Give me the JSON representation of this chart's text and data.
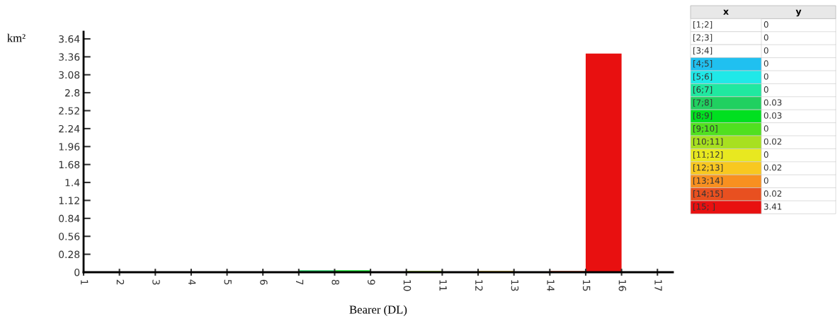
{
  "chart_data": [
    {
      "type": "histogram",
      "xlabel": "Bearer (DL)",
      "ylabel": "km²",
      "bins": [
        1,
        2,
        3,
        4,
        5,
        6,
        7,
        8,
        9,
        10,
        11,
        12,
        13,
        14,
        15,
        16
      ],
      "values": [
        0,
        0,
        0,
        0,
        0,
        0,
        0.03,
        0.03,
        0,
        0.02,
        0,
        0.02,
        0,
        0.02,
        3.41
      ],
      "colors": [
        "#ffffff",
        "#ffffff",
        "#ffffff",
        "#20c0f0",
        "#20e8e8",
        "#20e8a0",
        "#20d060",
        "#00e020",
        "#50e020",
        "#a8e020",
        "#e8e820",
        "#f8c820",
        "#f89020",
        "#e85020",
        "#e81010"
      ],
      "xlim": [
        1,
        17.43
      ],
      "xticks": [
        1,
        2,
        3,
        4,
        5,
        6,
        7,
        8,
        9,
        10,
        11,
        12,
        13,
        14,
        15,
        16,
        17
      ],
      "ylim": [
        0,
        3.75
      ],
      "yticks": [
        0,
        0.28,
        0.56,
        0.84,
        1.12,
        1.4,
        1.68,
        1.96,
        2.24,
        2.52,
        2.8,
        3.08,
        3.36,
        3.64
      ],
      "grid": false,
      "legend": false
    },
    {
      "type": "other",
      "xlabel": "x",
      "ylabel": "y",
      "categories": [
        "[1;2]",
        "[2;3]",
        "[3;4]",
        "[4;5]",
        "[5;6]",
        "[6;7]",
        "[7;8]",
        "[8;9]",
        "[9;10]",
        "[10;11]",
        "[11;12]",
        "[12;13]",
        "[13;14]",
        "[14;15]",
        "[15; ]"
      ],
      "values": [
        0,
        0,
        0,
        0,
        0,
        0,
        0.03,
        0.03,
        0,
        0.02,
        0,
        0.02,
        0,
        0.02,
        3.41
      ],
      "colors": [
        "#ffffff",
        "#ffffff",
        "#ffffff",
        "#20c0f0",
        "#20e8e8",
        "#20e8a0",
        "#20d060",
        "#00e020",
        "#50e020",
        "#a8e020",
        "#e8e820",
        "#f8c820",
        "#f89020",
        "#e85020",
        "#e81010"
      ],
      "data_labels": true
    }
  ]
}
